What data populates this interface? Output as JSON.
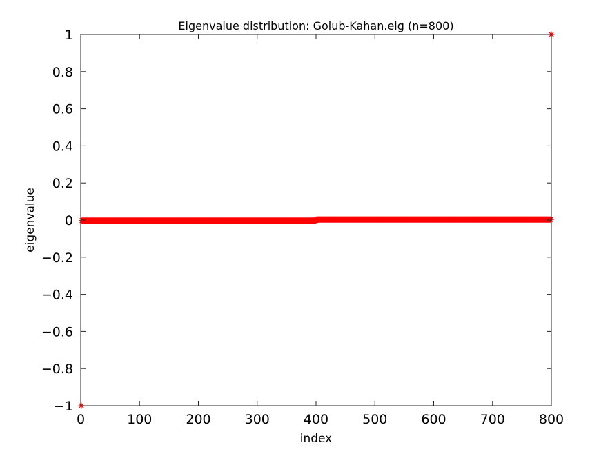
{
  "chart_data": {
    "type": "scatter",
    "title": "Eigenvalue distribution: Golub-Kahan.eig (n=800)",
    "xlabel": "index",
    "ylabel": "eigenvalue",
    "xlim": [
      0,
      800
    ],
    "ylim": [
      -1,
      1
    ],
    "xticks": [
      0,
      100,
      200,
      300,
      400,
      500,
      600,
      700,
      800
    ],
    "xtick_labels": [
      "0",
      "100",
      "200",
      "300",
      "400",
      "500",
      "600",
      "700",
      "800"
    ],
    "yticks": [
      -1,
      -0.8,
      -0.6,
      -0.4,
      -0.2,
      0,
      0.2,
      0.4,
      0.6,
      0.8,
      1
    ],
    "ytick_labels": [
      "−1",
      "−0.8",
      "−0.6",
      "−0.4",
      "−0.2",
      "0",
      "0.2",
      "0.4",
      "0.6",
      "0.8",
      "1"
    ],
    "grid": false,
    "marker": "*",
    "color": "#ff0000",
    "series": [
      {
        "segments": [
          {
            "x_from": 1,
            "x_to": 1,
            "y": -1
          },
          {
            "x_from": 2,
            "x_to": 400,
            "y": -0.003
          },
          {
            "x_from": 401,
            "x_to": 799,
            "y": 0.003
          },
          {
            "x_from": 800,
            "x_to": 800,
            "y": 1
          }
        ]
      }
    ]
  }
}
